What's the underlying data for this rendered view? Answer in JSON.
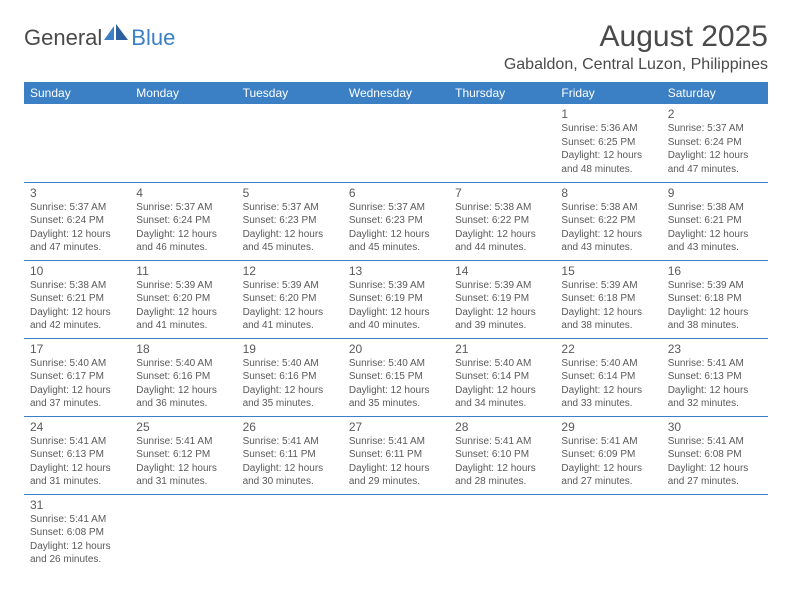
{
  "logo": {
    "general": "General",
    "blue": "Blue"
  },
  "title": "August 2025",
  "location": "Gabaldon, Central Luzon, Philippines",
  "dayHeaders": [
    "Sunday",
    "Monday",
    "Tuesday",
    "Wednesday",
    "Thursday",
    "Friday",
    "Saturday"
  ],
  "colors": {
    "headerBg": "#3b7fc4",
    "headerFg": "#ffffff",
    "text": "#5a5a5a",
    "cellBorder": "#3b7fc4",
    "background": "#ffffff"
  },
  "weeks": [
    [
      null,
      null,
      null,
      null,
      null,
      {
        "n": "1",
        "sr": "5:36 AM",
        "ss": "6:25 PM",
        "dl": "12 hours and 48 minutes."
      },
      {
        "n": "2",
        "sr": "5:37 AM",
        "ss": "6:24 PM",
        "dl": "12 hours and 47 minutes."
      }
    ],
    [
      {
        "n": "3",
        "sr": "5:37 AM",
        "ss": "6:24 PM",
        "dl": "12 hours and 47 minutes."
      },
      {
        "n": "4",
        "sr": "5:37 AM",
        "ss": "6:24 PM",
        "dl": "12 hours and 46 minutes."
      },
      {
        "n": "5",
        "sr": "5:37 AM",
        "ss": "6:23 PM",
        "dl": "12 hours and 45 minutes."
      },
      {
        "n": "6",
        "sr": "5:37 AM",
        "ss": "6:23 PM",
        "dl": "12 hours and 45 minutes."
      },
      {
        "n": "7",
        "sr": "5:38 AM",
        "ss": "6:22 PM",
        "dl": "12 hours and 44 minutes."
      },
      {
        "n": "8",
        "sr": "5:38 AM",
        "ss": "6:22 PM",
        "dl": "12 hours and 43 minutes."
      },
      {
        "n": "9",
        "sr": "5:38 AM",
        "ss": "6:21 PM",
        "dl": "12 hours and 43 minutes."
      }
    ],
    [
      {
        "n": "10",
        "sr": "5:38 AM",
        "ss": "6:21 PM",
        "dl": "12 hours and 42 minutes."
      },
      {
        "n": "11",
        "sr": "5:39 AM",
        "ss": "6:20 PM",
        "dl": "12 hours and 41 minutes."
      },
      {
        "n": "12",
        "sr": "5:39 AM",
        "ss": "6:20 PM",
        "dl": "12 hours and 41 minutes."
      },
      {
        "n": "13",
        "sr": "5:39 AM",
        "ss": "6:19 PM",
        "dl": "12 hours and 40 minutes."
      },
      {
        "n": "14",
        "sr": "5:39 AM",
        "ss": "6:19 PM",
        "dl": "12 hours and 39 minutes."
      },
      {
        "n": "15",
        "sr": "5:39 AM",
        "ss": "6:18 PM",
        "dl": "12 hours and 38 minutes."
      },
      {
        "n": "16",
        "sr": "5:39 AM",
        "ss": "6:18 PM",
        "dl": "12 hours and 38 minutes."
      }
    ],
    [
      {
        "n": "17",
        "sr": "5:40 AM",
        "ss": "6:17 PM",
        "dl": "12 hours and 37 minutes."
      },
      {
        "n": "18",
        "sr": "5:40 AM",
        "ss": "6:16 PM",
        "dl": "12 hours and 36 minutes."
      },
      {
        "n": "19",
        "sr": "5:40 AM",
        "ss": "6:16 PM",
        "dl": "12 hours and 35 minutes."
      },
      {
        "n": "20",
        "sr": "5:40 AM",
        "ss": "6:15 PM",
        "dl": "12 hours and 35 minutes."
      },
      {
        "n": "21",
        "sr": "5:40 AM",
        "ss": "6:14 PM",
        "dl": "12 hours and 34 minutes."
      },
      {
        "n": "22",
        "sr": "5:40 AM",
        "ss": "6:14 PM",
        "dl": "12 hours and 33 minutes."
      },
      {
        "n": "23",
        "sr": "5:41 AM",
        "ss": "6:13 PM",
        "dl": "12 hours and 32 minutes."
      }
    ],
    [
      {
        "n": "24",
        "sr": "5:41 AM",
        "ss": "6:13 PM",
        "dl": "12 hours and 31 minutes."
      },
      {
        "n": "25",
        "sr": "5:41 AM",
        "ss": "6:12 PM",
        "dl": "12 hours and 31 minutes."
      },
      {
        "n": "26",
        "sr": "5:41 AM",
        "ss": "6:11 PM",
        "dl": "12 hours and 30 minutes."
      },
      {
        "n": "27",
        "sr": "5:41 AM",
        "ss": "6:11 PM",
        "dl": "12 hours and 29 minutes."
      },
      {
        "n": "28",
        "sr": "5:41 AM",
        "ss": "6:10 PM",
        "dl": "12 hours and 28 minutes."
      },
      {
        "n": "29",
        "sr": "5:41 AM",
        "ss": "6:09 PM",
        "dl": "12 hours and 27 minutes."
      },
      {
        "n": "30",
        "sr": "5:41 AM",
        "ss": "6:08 PM",
        "dl": "12 hours and 27 minutes."
      }
    ],
    [
      {
        "n": "31",
        "sr": "5:41 AM",
        "ss": "6:08 PM",
        "dl": "12 hours and 26 minutes."
      },
      null,
      null,
      null,
      null,
      null,
      null
    ]
  ],
  "labels": {
    "sunrise": "Sunrise:",
    "sunset": "Sunset:",
    "daylight": "Daylight:"
  }
}
